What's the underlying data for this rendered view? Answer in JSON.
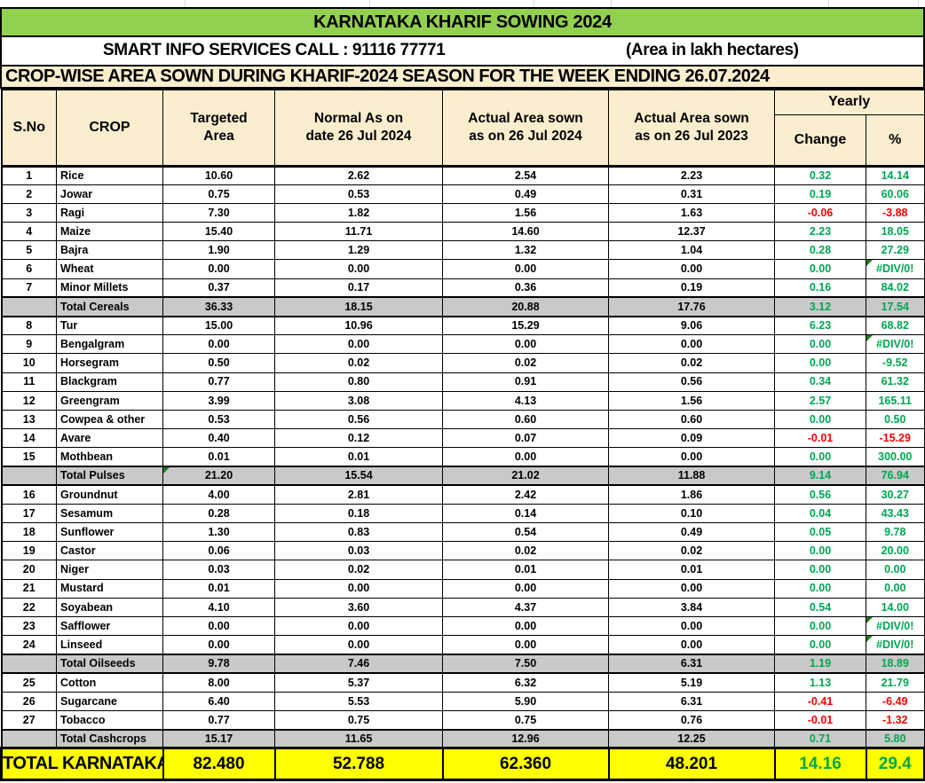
{
  "colors": {
    "title_bg": "#92D050",
    "header_bg": "#FBEECF",
    "subtotal_bg": "#C9C9C9",
    "total_bg": "#FFFF00",
    "green_text": "#00A651",
    "red_text": "#FF0000",
    "triangle": "#1E7A1E",
    "border": "#000000"
  },
  "title": "KARNATAKA KHARIF SOWING 2024",
  "info_row": {
    "left": "SMART INFO SERVICES CALL : 91116 77771",
    "right": "(Area in lakh hectares)"
  },
  "banner": "CROP-WISE AREA SOWN DURING KHARIF-2024 SEASON FOR THE WEEK ENDING 26.07.2024",
  "table": {
    "headers": {
      "sno": "S.No",
      "crop": "CROP",
      "targeted_line1": "Targeted",
      "targeted_line2": "Area",
      "normal_line1": "Normal As on",
      "normal_line2": "date 26 Jul 2024",
      "actual2024_line1": "Actual Area sown",
      "actual2024_line2": "as on 26 Jul 2024",
      "actual2023_line1": "Actual Area sown",
      "actual2023_line2": "as on 26 Jul 2023",
      "yearly": "Yearly",
      "change": "Change",
      "pct": "%"
    },
    "rows": [
      {
        "sno": "1",
        "crop": "Rice",
        "targeted": "10.60",
        "normal": "2.62",
        "actual_2024": "2.54",
        "actual_2023": "2.23",
        "change": "0.32",
        "pct": "14.14",
        "change_color": "green",
        "pct_color": "green",
        "subtotal": false,
        "tri_targeted": false,
        "tri_pct": false
      },
      {
        "sno": "2",
        "crop": "Jowar",
        "targeted": "0.75",
        "normal": "0.53",
        "actual_2024": "0.49",
        "actual_2023": "0.31",
        "change": "0.19",
        "pct": "60.06",
        "change_color": "green",
        "pct_color": "green",
        "subtotal": false,
        "tri_targeted": false,
        "tri_pct": false
      },
      {
        "sno": "3",
        "crop": "Ragi",
        "targeted": "7.30",
        "normal": "1.82",
        "actual_2024": "1.56",
        "actual_2023": "1.63",
        "change": "-0.06",
        "pct": "-3.88",
        "change_color": "red",
        "pct_color": "red",
        "subtotal": false,
        "tri_targeted": false,
        "tri_pct": false
      },
      {
        "sno": "4",
        "crop": "Maize",
        "targeted": "15.40",
        "normal": "11.71",
        "actual_2024": "14.60",
        "actual_2023": "12.37",
        "change": "2.23",
        "pct": "18.05",
        "change_color": "green",
        "pct_color": "green",
        "subtotal": false,
        "tri_targeted": false,
        "tri_pct": false
      },
      {
        "sno": "5",
        "crop": "Bajra",
        "targeted": "1.90",
        "normal": "1.29",
        "actual_2024": "1.32",
        "actual_2023": "1.04",
        "change": "0.28",
        "pct": "27.29",
        "change_color": "green",
        "pct_color": "green",
        "subtotal": false,
        "tri_targeted": false,
        "tri_pct": false
      },
      {
        "sno": "6",
        "crop": "Wheat",
        "targeted": "0.00",
        "normal": "0.00",
        "actual_2024": "0.00",
        "actual_2023": "0.00",
        "change": "0.00",
        "pct": "#DIV/0!",
        "change_color": "green",
        "pct_color": "green",
        "subtotal": false,
        "tri_targeted": false,
        "tri_pct": true
      },
      {
        "sno": "7",
        "crop": "Minor Millets",
        "targeted": "0.37",
        "normal": "0.17",
        "actual_2024": "0.36",
        "actual_2023": "0.19",
        "change": "0.16",
        "pct": "84.02",
        "change_color": "green",
        "pct_color": "green",
        "subtotal": false,
        "tri_targeted": false,
        "tri_pct": false
      },
      {
        "sno": "",
        "crop": "Total Cereals",
        "targeted": "36.33",
        "normal": "18.15",
        "actual_2024": "20.88",
        "actual_2023": "17.76",
        "change": "3.12",
        "pct": "17.54",
        "change_color": "green",
        "pct_color": "green",
        "subtotal": true,
        "tri_targeted": false,
        "tri_pct": false
      },
      {
        "sno": "8",
        "crop": "Tur",
        "targeted": "15.00",
        "normal": "10.96",
        "actual_2024": "15.29",
        "actual_2023": "9.06",
        "change": "6.23",
        "pct": "68.82",
        "change_color": "green",
        "pct_color": "green",
        "subtotal": false,
        "tri_targeted": false,
        "tri_pct": false
      },
      {
        "sno": "9",
        "crop": "Bengalgram",
        "targeted": "0.00",
        "normal": "0.00",
        "actual_2024": "0.00",
        "actual_2023": "0.00",
        "change": "0.00",
        "pct": "#DIV/0!",
        "change_color": "green",
        "pct_color": "green",
        "subtotal": false,
        "tri_targeted": false,
        "tri_pct": true
      },
      {
        "sno": "10",
        "crop": "Horsegram",
        "targeted": "0.50",
        "normal": "0.02",
        "actual_2024": "0.02",
        "actual_2023": "0.02",
        "change": "0.00",
        "pct": "-9.52",
        "change_color": "green",
        "pct_color": "green",
        "subtotal": false,
        "tri_targeted": false,
        "tri_pct": false
      },
      {
        "sno": "11",
        "crop": "Blackgram",
        "targeted": "0.77",
        "normal": "0.80",
        "actual_2024": "0.91",
        "actual_2023": "0.56",
        "change": "0.34",
        "pct": "61.32",
        "change_color": "green",
        "pct_color": "green",
        "subtotal": false,
        "tri_targeted": false,
        "tri_pct": false
      },
      {
        "sno": "12",
        "crop": "Greengram",
        "targeted": "3.99",
        "normal": "3.08",
        "actual_2024": "4.13",
        "actual_2023": "1.56",
        "change": "2.57",
        "pct": "165.11",
        "change_color": "green",
        "pct_color": "green",
        "subtotal": false,
        "tri_targeted": false,
        "tri_pct": false
      },
      {
        "sno": "13",
        "crop": "Cowpea & other",
        "targeted": "0.53",
        "normal": "0.56",
        "actual_2024": "0.60",
        "actual_2023": "0.60",
        "change": "0.00",
        "pct": "0.50",
        "change_color": "green",
        "pct_color": "green",
        "subtotal": false,
        "tri_targeted": false,
        "tri_pct": false
      },
      {
        "sno": "14",
        "crop": "Avare",
        "targeted": "0.40",
        "normal": "0.12",
        "actual_2024": "0.07",
        "actual_2023": "0.09",
        "change": "-0.01",
        "pct": "-15.29",
        "change_color": "red",
        "pct_color": "red",
        "subtotal": false,
        "tri_targeted": false,
        "tri_pct": false
      },
      {
        "sno": "15",
        "crop": "Mothbean",
        "targeted": "0.01",
        "normal": "0.01",
        "actual_2024": "0.00",
        "actual_2023": "0.00",
        "change": "0.00",
        "pct": "300.00",
        "change_color": "green",
        "pct_color": "green",
        "subtotal": false,
        "tri_targeted": false,
        "tri_pct": false
      },
      {
        "sno": "",
        "crop": "Total Pulses",
        "targeted": "21.20",
        "normal": "15.54",
        "actual_2024": "21.02",
        "actual_2023": "11.88",
        "change": "9.14",
        "pct": "76.94",
        "change_color": "green",
        "pct_color": "green",
        "subtotal": true,
        "tri_targeted": true,
        "tri_pct": false
      },
      {
        "sno": "16",
        "crop": "Groundnut",
        "targeted": "4.00",
        "normal": "2.81",
        "actual_2024": "2.42",
        "actual_2023": "1.86",
        "change": "0.56",
        "pct": "30.27",
        "change_color": "green",
        "pct_color": "green",
        "subtotal": false,
        "tri_targeted": false,
        "tri_pct": false
      },
      {
        "sno": "17",
        "crop": "Sesamum",
        "targeted": "0.28",
        "normal": "0.18",
        "actual_2024": "0.14",
        "actual_2023": "0.10",
        "change": "0.04",
        "pct": "43.43",
        "change_color": "green",
        "pct_color": "green",
        "subtotal": false,
        "tri_targeted": false,
        "tri_pct": false
      },
      {
        "sno": "18",
        "crop": "Sunflower",
        "targeted": "1.30",
        "normal": "0.83",
        "actual_2024": "0.54",
        "actual_2023": "0.49",
        "change": "0.05",
        "pct": "9.78",
        "change_color": "green",
        "pct_color": "green",
        "subtotal": false,
        "tri_targeted": false,
        "tri_pct": false
      },
      {
        "sno": "19",
        "crop": "Castor",
        "targeted": "0.06",
        "normal": "0.03",
        "actual_2024": "0.02",
        "actual_2023": "0.02",
        "change": "0.00",
        "pct": "20.00",
        "change_color": "green",
        "pct_color": "green",
        "subtotal": false,
        "tri_targeted": false,
        "tri_pct": false
      },
      {
        "sno": "20",
        "crop": "Niger",
        "targeted": "0.03",
        "normal": "0.02",
        "actual_2024": "0.01",
        "actual_2023": "0.01",
        "change": "0.00",
        "pct": "0.00",
        "change_color": "green",
        "pct_color": "green",
        "subtotal": false,
        "tri_targeted": false,
        "tri_pct": false
      },
      {
        "sno": "21",
        "crop": "Mustard",
        "targeted": "0.01",
        "normal": "0.00",
        "actual_2024": "0.00",
        "actual_2023": "0.00",
        "change": "0.00",
        "pct": "0.00",
        "change_color": "green",
        "pct_color": "green",
        "subtotal": false,
        "tri_targeted": false,
        "tri_pct": false
      },
      {
        "sno": "22",
        "crop": "Soyabean",
        "targeted": "4.10",
        "normal": "3.60",
        "actual_2024": "4.37",
        "actual_2023": "3.84",
        "change": "0.54",
        "pct": "14.00",
        "change_color": "green",
        "pct_color": "green",
        "subtotal": false,
        "tri_targeted": false,
        "tri_pct": false
      },
      {
        "sno": "23",
        "crop": "Safflower",
        "targeted": "0.00",
        "normal": "0.00",
        "actual_2024": "0.00",
        "actual_2023": "0.00",
        "change": "0.00",
        "pct": "#DIV/0!",
        "change_color": "green",
        "pct_color": "green",
        "subtotal": false,
        "tri_targeted": false,
        "tri_pct": true
      },
      {
        "sno": "24",
        "crop": "Linseed",
        "targeted": "0.00",
        "normal": "0.00",
        "actual_2024": "0.00",
        "actual_2023": "0.00",
        "change": "0.00",
        "pct": "#DIV/0!",
        "change_color": "green",
        "pct_color": "green",
        "subtotal": false,
        "tri_targeted": false,
        "tri_pct": true
      },
      {
        "sno": "",
        "crop": "Total Oilseeds",
        "targeted": "9.78",
        "normal": "7.46",
        "actual_2024": "7.50",
        "actual_2023": "6.31",
        "change": "1.19",
        "pct": "18.89",
        "change_color": "green",
        "pct_color": "green",
        "subtotal": true,
        "tri_targeted": false,
        "tri_pct": false
      },
      {
        "sno": "25",
        "crop": "Cotton",
        "targeted": "8.00",
        "normal": "5.37",
        "actual_2024": "6.32",
        "actual_2023": "5.19",
        "change": "1.13",
        "pct": "21.79",
        "change_color": "green",
        "pct_color": "green",
        "subtotal": false,
        "tri_targeted": false,
        "tri_pct": false
      },
      {
        "sno": "26",
        "crop": "Sugarcane",
        "targeted": "6.40",
        "normal": "5.53",
        "actual_2024": "5.90",
        "actual_2023": "6.31",
        "change": "-0.41",
        "pct": "-6.49",
        "change_color": "red",
        "pct_color": "red",
        "subtotal": false,
        "tri_targeted": false,
        "tri_pct": false
      },
      {
        "sno": "27",
        "crop": "Tobacco",
        "targeted": "0.77",
        "normal": "0.75",
        "actual_2024": "0.75",
        "actual_2023": "0.76",
        "change": "-0.01",
        "pct": "-1.32",
        "change_color": "red",
        "pct_color": "red",
        "subtotal": false,
        "tri_targeted": false,
        "tri_pct": false
      },
      {
        "sno": "",
        "crop": "Total Cashcrops",
        "targeted": "15.17",
        "normal": "11.65",
        "actual_2024": "12.96",
        "actual_2023": "12.25",
        "change": "0.71",
        "pct": "5.80",
        "change_color": "green",
        "pct_color": "green",
        "subtotal": true,
        "tri_targeted": false,
        "tri_pct": false
      }
    ],
    "total_row": {
      "label": "TOTAL KARNATAKA",
      "targeted": "82.480",
      "normal": "52.788",
      "actual_2024": "62.360",
      "actual_2023": "48.201",
      "change": "14.16",
      "pct": "29.4",
      "change_color": "green",
      "pct_color": "green"
    }
  }
}
